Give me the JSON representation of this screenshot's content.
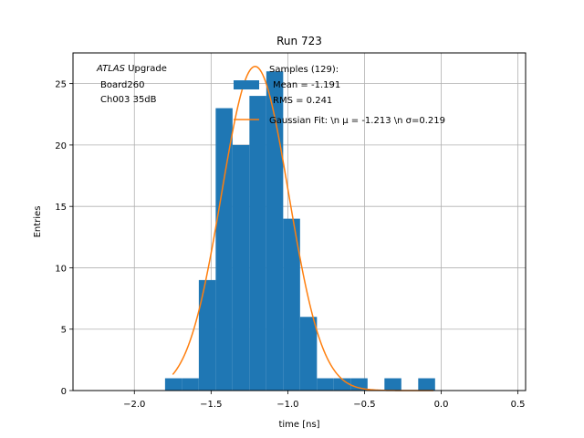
{
  "chart_data": {
    "type": "bar",
    "title": "Run 723",
    "xlabel": "time [ns]",
    "ylabel": "Entries",
    "xlim": [
      -2.4,
      0.55
    ],
    "ylim": [
      0,
      27.5
    ],
    "grid": true,
    "xticks": [
      -2.0,
      -1.5,
      -1.0,
      -0.5,
      0.0,
      0.5
    ],
    "xtick_labels": [
      "−2.0",
      "−1.5",
      "−1.0",
      "−0.5",
      "0.0",
      "0.5"
    ],
    "yticks": [
      0,
      5,
      10,
      15,
      20,
      25
    ],
    "ytick_labels": [
      "0",
      "5",
      "10",
      "15",
      "20",
      "25"
    ],
    "annotation": {
      "italic": "ATLAS",
      "line1_rest": " Upgrade",
      "line2": "Board260",
      "line3": "Ch003 35dB"
    },
    "histogram": {
      "name_lines": [
        "Samples (129):",
        "Mean = -1.191",
        "RMS = 0.241"
      ],
      "color": "#1f77b4",
      "bins": [
        {
          "x0": -1.8,
          "x1": -1.69,
          "count": 1
        },
        {
          "x0": -1.69,
          "x1": -1.58,
          "count": 1
        },
        {
          "x0": -1.58,
          "x1": -1.47,
          "count": 9
        },
        {
          "x0": -1.47,
          "x1": -1.36,
          "count": 23
        },
        {
          "x0": -1.36,
          "x1": -1.25,
          "count": 20
        },
        {
          "x0": -1.25,
          "x1": -1.14,
          "count": 24
        },
        {
          "x0": -1.14,
          "x1": -1.03,
          "count": 26
        },
        {
          "x0": -1.03,
          "x1": -0.92,
          "count": 14
        },
        {
          "x0": -0.92,
          "x1": -0.81,
          "count": 6
        },
        {
          "x0": -0.81,
          "x1": -0.7,
          "count": 1
        },
        {
          "x0": -0.7,
          "x1": -0.59,
          "count": 1
        },
        {
          "x0": -0.59,
          "x1": -0.48,
          "count": 1
        },
        {
          "x0": -0.48,
          "x1": -0.37,
          "count": 0
        },
        {
          "x0": -0.37,
          "x1": -0.26,
          "count": 1
        },
        {
          "x0": -0.26,
          "x1": -0.15,
          "count": 0
        },
        {
          "x0": -0.15,
          "x1": -0.04,
          "count": 1
        }
      ]
    },
    "fit": {
      "name": "Gaussian Fit: \\n μ = -1.213 \\n σ=0.219",
      "color": "#ff7f0e",
      "type": "gaussian",
      "mu": -1.213,
      "sigma": 0.219,
      "amplitude": 26.4,
      "x_range": [
        -1.75,
        -0.05
      ]
    },
    "legend_position": "top-right"
  }
}
